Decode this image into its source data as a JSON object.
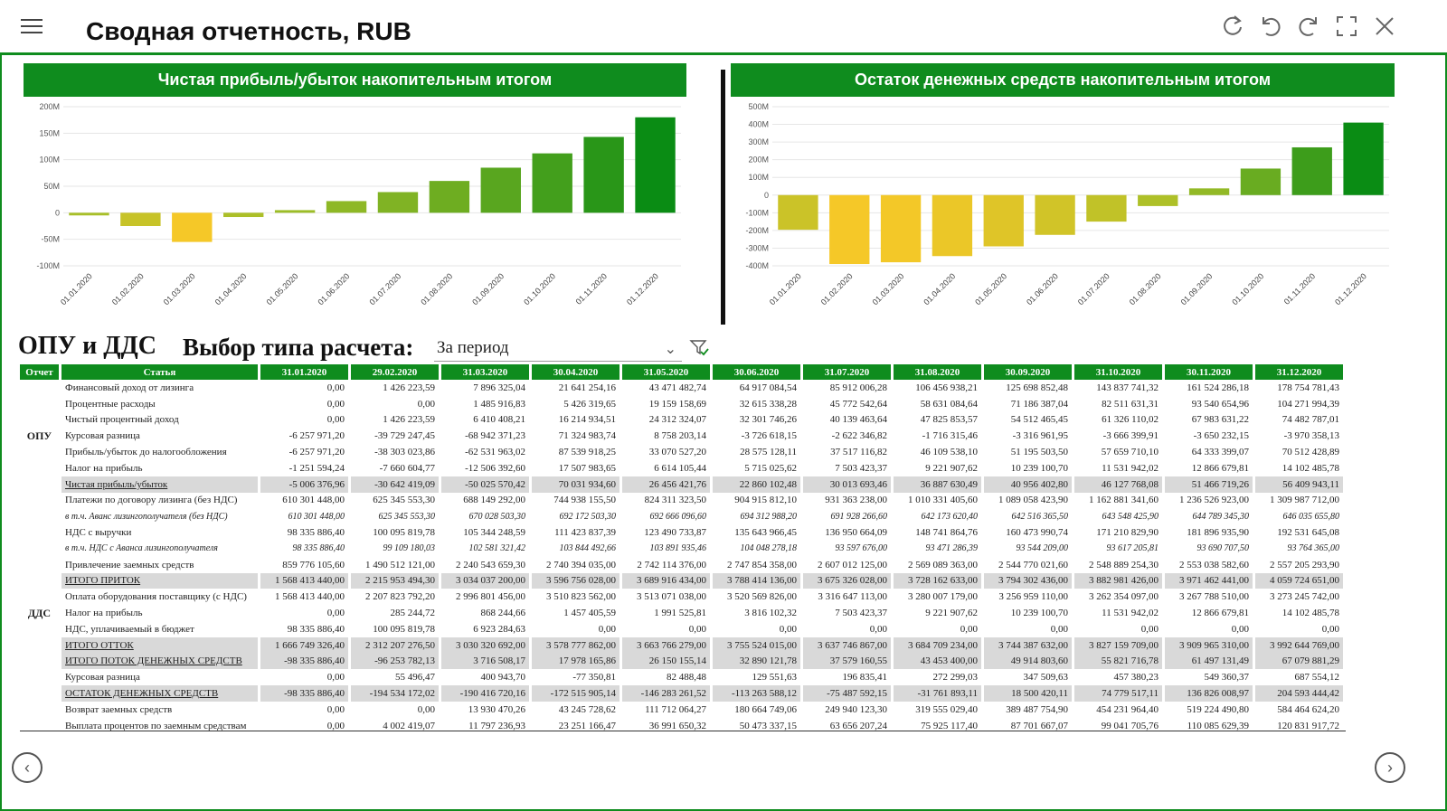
{
  "header": {
    "title": "Сводная отчетность, RUB",
    "icons": [
      "refresh-icon",
      "undo-icon",
      "redo-icon",
      "fullscreen-icon",
      "close-icon"
    ]
  },
  "colors": {
    "accent": "#0f8c1e",
    "highlight_row": "#d9d9d9"
  },
  "charts": {
    "dates": [
      "01.01.2020",
      "01.02.2020",
      "01.03.2020",
      "01.04.2020",
      "01.05.2020",
      "01.06.2020",
      "01.07.2020",
      "01.08.2020",
      "01.09.2020",
      "01.10.2020",
      "01.11.2020",
      "01.12.2020"
    ]
  },
  "chart_data": [
    {
      "type": "bar",
      "title": "Чистая прибыль/убыток накопительным итогом",
      "categories": [
        "01.01.2020",
        "01.02.2020",
        "01.03.2020",
        "01.04.2020",
        "01.05.2020",
        "01.06.2020",
        "01.07.2020",
        "01.08.2020",
        "01.09.2020",
        "01.10.2020",
        "01.11.2020",
        "01.12.2020"
      ],
      "values": [
        -5,
        -25,
        -55,
        -8,
        5,
        22,
        39,
        60,
        85,
        112,
        143,
        180
      ],
      "ylim": [
        -100,
        200
      ],
      "yticks": [
        -100,
        -50,
        0,
        50,
        100,
        150,
        200
      ],
      "ytick_labels": [
        "-100M",
        "-50M",
        "0",
        "50M",
        "100M",
        "150M",
        "200M"
      ],
      "grid": true
    },
    {
      "type": "bar",
      "title": "Остаток денежных средств накопительным итогом",
      "categories": [
        "01.01.2020",
        "01.02.2020",
        "01.03.2020",
        "01.04.2020",
        "01.05.2020",
        "01.06.2020",
        "01.07.2020",
        "01.08.2020",
        "01.09.2020",
        "01.10.2020",
        "01.11.2020",
        "01.12.2020"
      ],
      "values": [
        -196,
        -390,
        -380,
        -345,
        -290,
        -225,
        -150,
        -62,
        38,
        150,
        270,
        410
      ],
      "ylim": [
        -400,
        500
      ],
      "yticks": [
        -400,
        -300,
        -200,
        -100,
        0,
        100,
        200,
        300,
        400,
        500
      ],
      "ytick_labels": [
        "-400M",
        "-300M",
        "-200M",
        "-100M",
        "0",
        "100M",
        "200M",
        "300M",
        "400M",
        "500M"
      ],
      "grid": true
    }
  ],
  "section": {
    "title": "ОПУ и ДДС",
    "calc_label": "Выбор типа расчета:",
    "calc_value": "За период"
  },
  "table": {
    "col_report": "Отчет",
    "col_item": "Статья",
    "columns": [
      "31.01.2020",
      "29.02.2020",
      "31.03.2020",
      "30.04.2020",
      "31.05.2020",
      "30.06.2020",
      "31.07.2020",
      "31.08.2020",
      "30.09.2020",
      "31.10.2020",
      "30.11.2020",
      "31.12.2020"
    ],
    "groups": [
      {
        "name": "ОПУ",
        "rows": [
          {
            "label": "Финансовый доход от лизинга",
            "values": [
              "0,00",
              "1 426 223,59",
              "7 896 325,04",
              "21 641 254,16",
              "43 471 482,74",
              "64 917 084,54",
              "85 912 006,28",
              "106 456 938,21",
              "125 698 852,48",
              "143 837 741,32",
              "161 524 286,18",
              "178 754 781,43"
            ]
          },
          {
            "label": "Процентные расходы",
            "values": [
              "0,00",
              "0,00",
              "1 485 916,83",
              "5 426 319,65",
              "19 159 158,69",
              "32 615 338,28",
              "45 772 542,64",
              "58 631 084,64",
              "71 186 387,04",
              "82 511 631,31",
              "93 540 654,96",
              "104 271 994,39"
            ]
          },
          {
            "label": "Чистый процентный доход",
            "values": [
              "0,00",
              "1 426 223,59",
              "6 410 408,21",
              "16 214 934,51",
              "24 312 324,07",
              "32 301 746,26",
              "40 139 463,64",
              "47 825 853,57",
              "54 512 465,45",
              "61 326 110,02",
              "67 983 631,22",
              "74 482 787,01"
            ]
          },
          {
            "label": "Курсовая разница",
            "values": [
              "-6 257 971,20",
              "-39 729 247,45",
              "-68 942 371,23",
              "71 324 983,74",
              "8 758 203,14",
              "-3 726 618,15",
              "-2 622 346,82",
              "-1 716 315,46",
              "-3 316 961,95",
              "-3 666 399,91",
              "-3 650 232,15",
              "-3 970 358,13"
            ]
          },
          {
            "label": "Прибыль/убыток до налогообложения",
            "values": [
              "-6 257 971,20",
              "-38 303 023,86",
              "-62 531 963,02",
              "87 539 918,25",
              "33 070 527,20",
              "28 575 128,11",
              "37 517 116,82",
              "46 109 538,10",
              "51 195 503,50",
              "57 659 710,10",
              "64 333 399,07",
              "70 512 428,89"
            ]
          },
          {
            "label": "Налог на прибыль",
            "values": [
              "-1 251 594,24",
              "-7 660 604,77",
              "-12 506 392,60",
              "17 507 983,65",
              "6 614 105,44",
              "5 715 025,62",
              "7 503 423,37",
              "9 221 907,62",
              "10 239 100,70",
              "11 531 942,02",
              "12 866 679,81",
              "14 102 485,78"
            ]
          },
          {
            "label": "Чистая прибыль/убыток",
            "hl": true,
            "values": [
              "-5 006 376,96",
              "-30 642 419,09",
              "-50 025 570,42",
              "70 031 934,60",
              "26 456 421,76",
              "22 860 102,48",
              "30 013 693,46",
              "36 887 630,49",
              "40 956 402,80",
              "46 127 768,08",
              "51 466 719,26",
              "56 409 943,11"
            ]
          }
        ]
      },
      {
        "name": "ДДС",
        "rows": [
          {
            "label": "Платежи по договору лизинга (без НДС)",
            "values": [
              "610 301 448,00",
              "625 345 553,30",
              "688 149 292,00",
              "744 938 155,50",
              "824 311 323,50",
              "904 915 812,10",
              "931 363 238,00",
              "1 010 331 405,60",
              "1 089 058 423,90",
              "1 162 881 341,60",
              "1 236 526 923,00",
              "1 309 987 712,00"
            ]
          },
          {
            "label": "в т.ч. Аванс лизингополучателя (без НДС)",
            "it": true,
            "values": [
              "610 301 448,00",
              "625 345 553,30",
              "670 028 503,30",
              "692 172 503,30",
              "692 666 096,60",
              "694 312 988,20",
              "691 928 266,60",
              "642 173 620,40",
              "642 516 365,50",
              "643 548 425,90",
              "644 789 345,30",
              "646 035 655,80"
            ]
          },
          {
            "label": "НДС с выручки",
            "values": [
              "98 335 886,40",
              "100 095 819,78",
              "105 344 248,59",
              "111 423 837,39",
              "123 490 733,87",
              "135 643 966,45",
              "136 950 664,09",
              "148 741 864,76",
              "160 473 990,74",
              "171 210 829,90",
              "181 896 935,90",
              "192 531 645,08"
            ]
          },
          {
            "label": "в т.ч. НДС с Аванса лизингополучателя",
            "it": true,
            "values": [
              "98 335 886,40",
              "99 109 180,03",
              "102 581 321,42",
              "103 844 492,66",
              "103 891 935,46",
              "104 048 278,18",
              "93 597 676,00",
              "93 471 286,39",
              "93 544 209,00",
              "93 617 205,81",
              "93 690 707,50",
              "93 764 365,00"
            ]
          },
          {
            "label": "Привлечение заемных средств",
            "values": [
              "859 776 105,60",
              "1 490 512 121,00",
              "2 240 543 659,30",
              "2 740 394 035,00",
              "2 742 114 376,00",
              "2 747 854 358,00",
              "2 607 012 125,00",
              "2 569 089 363,00",
              "2 544 770 021,60",
              "2 548 889 254,30",
              "2 553 038 582,60",
              "2 557 205 293,90"
            ]
          },
          {
            "label": "ИТОГО ПРИТОК",
            "hl": true,
            "values": [
              "1 568 413 440,00",
              "2 215 953 494,30",
              "3 034 037 200,00",
              "3 596 756 028,00",
              "3 689 916 434,00",
              "3 788 414 136,00",
              "3 675 326 028,00",
              "3 728 162 633,00",
              "3 794 302 436,00",
              "3 882 981 426,00",
              "3 971 462 441,00",
              "4 059 724 651,00"
            ]
          },
          {
            "label": "Оплата оборудования поставщику (с НДС)",
            "values": [
              "1 568 413 440,00",
              "2 207 823 792,20",
              "2 996 801 456,00",
              "3 510 823 562,00",
              "3 513 071 038,00",
              "3 520 569 826,00",
              "3 316 647 113,00",
              "3 280 007 179,00",
              "3 256 959 110,00",
              "3 262 354 097,00",
              "3 267 788 510,00",
              "3 273 245 742,00"
            ]
          },
          {
            "label": "Налог на прибыль",
            "values": [
              "0,00",
              "285 244,72",
              "868 244,66",
              "1 457 405,59",
              "1 991 525,81",
              "3 816 102,32",
              "7 503 423,37",
              "9 221 907,62",
              "10 239 100,70",
              "11 531 942,02",
              "12 866 679,81",
              "14 102 485,78"
            ]
          },
          {
            "label": "НДС, уплачиваемый в бюджет",
            "values": [
              "98 335 886,40",
              "100 095 819,78",
              "6 923 284,63",
              "0,00",
              "0,00",
              "0,00",
              "0,00",
              "0,00",
              "0,00",
              "0,00",
              "0,00",
              "0,00"
            ]
          },
          {
            "label": "ИТОГО ОТТОК",
            "hl": true,
            "values": [
              "1 666 749 326,40",
              "2 312 207 276,50",
              "3 030 320 692,00",
              "3 578 777 862,00",
              "3 663 766 279,00",
              "3 755 524 015,00",
              "3 637 746 867,00",
              "3 684 709 234,00",
              "3 744 387 632,00",
              "3 827 159 709,00",
              "3 909 965 310,00",
              "3 992 644 769,00"
            ]
          },
          {
            "label": "ИТОГО ПОТОК ДЕНЕЖНЫХ СРЕДСТВ",
            "hl": true,
            "values": [
              "-98 335 886,40",
              "-96 253 782,13",
              "3 716 508,17",
              "17 978 165,86",
              "26 150 155,14",
              "32 890 121,78",
              "37 579 160,55",
              "43 453 400,00",
              "49 914 803,60",
              "55 821 716,78",
              "61 497 131,49",
              "67 079 881,29"
            ]
          },
          {
            "label": "Курсовая разница",
            "values": [
              "0,00",
              "55 496,47",
              "400 943,70",
              "-77 350,81",
              "82 488,48",
              "129 551,63",
              "196 835,41",
              "272 299,03",
              "347 509,63",
              "457 380,23",
              "549 360,37",
              "687 554,12"
            ]
          },
          {
            "label": "ОСТАТОК ДЕНЕЖНЫХ СРЕДСТВ",
            "hl": true,
            "values": [
              "-98 335 886,40",
              "-194 534 172,02",
              "-190 416 720,16",
              "-172 515 905,14",
              "-146 283 261,52",
              "-113 263 588,12",
              "-75 487 592,15",
              "-31 761 893,11",
              "18 500 420,11",
              "74 779 517,11",
              "136 826 008,97",
              "204 593 444,42"
            ]
          },
          {
            "label": "Возврат заемных средств",
            "values": [
              "0,00",
              "0,00",
              "13 930 470,26",
              "43 245 728,62",
              "111 712 064,27",
              "180 664 749,06",
              "249 940 123,30",
              "319 555 029,40",
              "389 487 754,90",
              "454 231 964,40",
              "519 224 490,80",
              "584 464 624,20"
            ]
          },
          {
            "label": "Выплата процентов по заемным средствам",
            "values": [
              "0,00",
              "4 002 419,07",
              "11 797 236,93",
              "23 251 166,47",
              "36 991 650,32",
              "50 473 337,15",
              "63 656 207,24",
              "75 925 117,40",
              "87 701 667,07",
              "99 041 705,76",
              "110 085 629,39",
              "120 831 917,72"
            ]
          }
        ]
      }
    ]
  },
  "nav": {
    "prev_icon": "chevron-left-icon",
    "next_icon": "chevron-right-icon"
  }
}
